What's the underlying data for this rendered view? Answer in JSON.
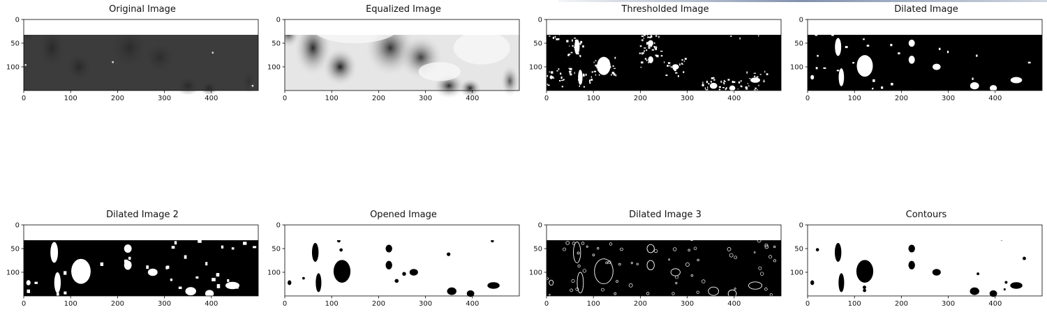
{
  "figure": {
    "panels": [
      {
        "title": "Original Image",
        "icon": "grayscale-photo-icon",
        "render": "original",
        "x_ticks": [
          "0",
          "100",
          "200",
          "300",
          "400"
        ],
        "y_ticks": [
          "0",
          "50",
          "100"
        ]
      },
      {
        "title": "Equalized Image",
        "icon": "equalized-photo-icon",
        "render": "equalized",
        "x_ticks": [
          "0",
          "100",
          "200",
          "300",
          "400"
        ],
        "y_ticks": [
          "0",
          "50",
          "100"
        ]
      },
      {
        "title": "Thresholded Image",
        "icon": "binary-mask-icon",
        "render": "threshold",
        "x_ticks": [
          "0",
          "100",
          "200",
          "300",
          "400"
        ],
        "y_ticks": [
          "0",
          "50",
          "100"
        ]
      },
      {
        "title": "Dilated Image",
        "icon": "dilated-mask-icon",
        "render": "dilated",
        "x_ticks": [
          "0",
          "100",
          "200",
          "300",
          "400"
        ],
        "y_ticks": [
          "0",
          "50",
          "100"
        ]
      },
      {
        "title": "Dilated Image 2",
        "icon": "dilated-mask-2-icon",
        "render": "dilated2",
        "x_ticks": [
          "0",
          "100",
          "200",
          "300",
          "400"
        ],
        "y_ticks": [
          "0",
          "50",
          "100"
        ]
      },
      {
        "title": "Opened Image",
        "icon": "opened-mask-icon",
        "render": "opened",
        "x_ticks": [
          "0",
          "100",
          "200",
          "300",
          "400"
        ],
        "y_ticks": [
          "0",
          "50",
          "100"
        ]
      },
      {
        "title": "Dilated Image 3",
        "icon": "edge-map-icon",
        "render": "dilated3",
        "x_ticks": [
          "0",
          "100",
          "200",
          "300",
          "400"
        ],
        "y_ticks": [
          "0",
          "50",
          "100"
        ]
      },
      {
        "title": "Contours",
        "icon": "contours-icon",
        "render": "contours",
        "x_ticks": [
          "0",
          "100",
          "200",
          "300",
          "400"
        ],
        "y_ticks": [
          "0",
          "50",
          "100"
        ]
      }
    ]
  }
}
